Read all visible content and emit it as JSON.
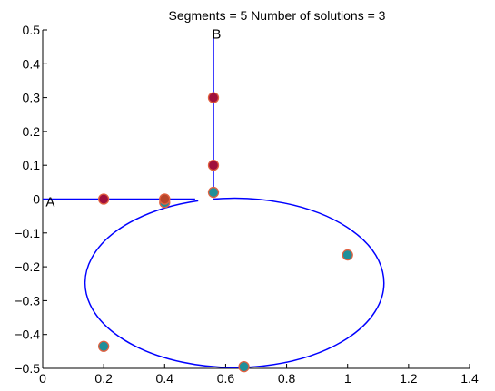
{
  "chart_data": {
    "type": "line",
    "title": "Segments = 5  Number of solutions = 3",
    "xlim": [
      0,
      1.4
    ],
    "ylim": [
      -0.5,
      0.5
    ],
    "x_ticks": [
      "0",
      "0.2",
      "0.4",
      "0.6",
      "0.8",
      "1",
      "1.2",
      "1.4"
    ],
    "y_ticks": [
      "0.5",
      "0.4",
      "0.3",
      "0.2",
      "0.1",
      "0",
      "−0.1",
      "−0.2",
      "−0.3",
      "−0.4",
      "−0.5"
    ],
    "annotations": [
      {
        "text": "A",
        "x": 0.01,
        "y": -0.005
      },
      {
        "text": "B",
        "x": 0.555,
        "y": 0.49
      }
    ],
    "paths": [
      {
        "kind": "polyline",
        "points": [
          [
            0,
            0
          ],
          [
            0.5,
            0
          ]
        ]
      },
      {
        "kind": "polyline",
        "points": [
          [
            0.56,
            0.5
          ],
          [
            0.56,
            0.02
          ]
        ]
      },
      {
        "kind": "ellipse_arc",
        "center": [
          0.51,
          -0.255
        ],
        "radii": [
          0.49,
          0.25
        ],
        "start_point": [
          0.56,
          0.0
        ],
        "end_point": [
          0.51,
          -0.005
        ]
      }
    ],
    "solutions": [
      {
        "points": [
          [
            0.56,
            0.02
          ],
          [
            1.0,
            -0.165
          ],
          [
            0.66,
            -0.495
          ],
          [
            0.2,
            -0.435
          ],
          [
            0.4,
            -0.01
          ]
        ],
        "fill": "#1f8f9a"
      },
      {
        "points": [
          [
            0.2,
            0.0
          ],
          [
            0.4,
            0.0
          ],
          [
            0.56,
            0.1
          ],
          [
            0.56,
            0.3
          ]
        ],
        "fill": "#a0103c"
      },
      {
        "points": [
          [
            0.4,
            0.0
          ]
        ],
        "fill": "#b8452a"
      }
    ],
    "colors": {
      "curve": "#0000ff",
      "marker_edge": "#e06040",
      "axes": "#000000"
    }
  }
}
